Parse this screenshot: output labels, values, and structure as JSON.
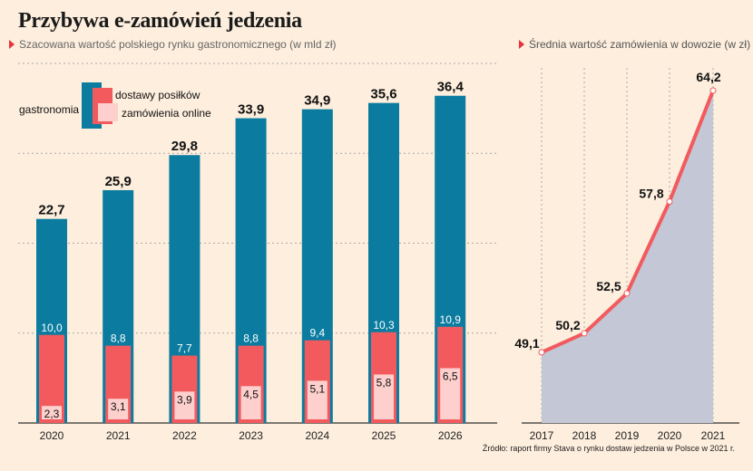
{
  "title": "Przybywa e-zamówień jedzenia",
  "subtitle_left": "Szacowana wartość polskiego rynku gastronomicznego (w mld zł)",
  "subtitle_right": "Średnia wartość zamówienia w dowozie (w zł)",
  "source": "Źródło: raport firmy Stava o rynku dostaw jedzenia w Polsce w 2021 r.",
  "colors": {
    "gastronomia": "#0b7ca0",
    "dostawy": "#f25a5e",
    "online": "#fdd0cd",
    "line": "#f25a5e",
    "area": "#c3c7d6",
    "background": "#fdeedd"
  },
  "chart_data": [
    {
      "type": "bar",
      "categories": [
        "2020",
        "2021",
        "2022",
        "2023",
        "2024",
        "2025",
        "2026"
      ],
      "series": [
        {
          "name": "gastronomia",
          "values": [
            22.7,
            25.9,
            29.8,
            33.9,
            34.9,
            35.6,
            36.4
          ]
        },
        {
          "name": "dostawy posiłków",
          "values": [
            10.0,
            8.8,
            7.7,
            8.8,
            9.4,
            10.3,
            10.9
          ]
        },
        {
          "name": "zamówienia online",
          "values": [
            2.3,
            3.1,
            3.9,
            4.5,
            5.1,
            5.8,
            6.5
          ]
        }
      ],
      "ylim": [
        0,
        40
      ],
      "grid": true,
      "legend": "top-left"
    },
    {
      "type": "area",
      "x": [
        "2017",
        "2018",
        "2019",
        "2020",
        "2021"
      ],
      "values": [
        49.1,
        50.2,
        52.5,
        57.8,
        64.2
      ],
      "grid": true
    }
  ]
}
